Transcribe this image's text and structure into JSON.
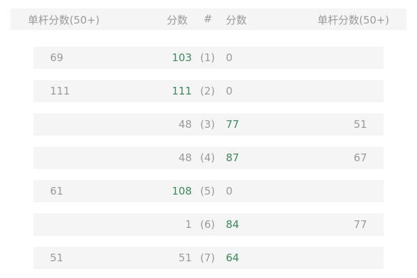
{
  "header": {
    "left_single": "单杆分数(50+)",
    "left_score": "分数",
    "index": "#",
    "right_score": "分数",
    "right_single": "单杆分数(50+)"
  },
  "colors": {
    "winner": "#3d8a5c",
    "text": "#9a9a9a",
    "row_bg": "#f5f5f5"
  },
  "rows": [
    {
      "left_single": "69",
      "left_score": "103",
      "index": "(1)",
      "right_score": "0",
      "right_single": "",
      "winner": "left"
    },
    {
      "left_single": "111",
      "left_score": "111",
      "index": "(2)",
      "right_score": "0",
      "right_single": "",
      "winner": "left"
    },
    {
      "left_single": "",
      "left_score": "48",
      "index": "(3)",
      "right_score": "77",
      "right_single": "51",
      "winner": "right"
    },
    {
      "left_single": "",
      "left_score": "48",
      "index": "(4)",
      "right_score": "87",
      "right_single": "67",
      "winner": "right"
    },
    {
      "left_single": "61",
      "left_score": "108",
      "index": "(5)",
      "right_score": "0",
      "right_single": "",
      "winner": "left"
    },
    {
      "left_single": "",
      "left_score": "1",
      "index": "(6)",
      "right_score": "84",
      "right_single": "77",
      "winner": "right"
    },
    {
      "left_single": "51",
      "left_score": "51",
      "index": "(7)",
      "right_score": "64",
      "right_single": "",
      "winner": "right"
    }
  ]
}
